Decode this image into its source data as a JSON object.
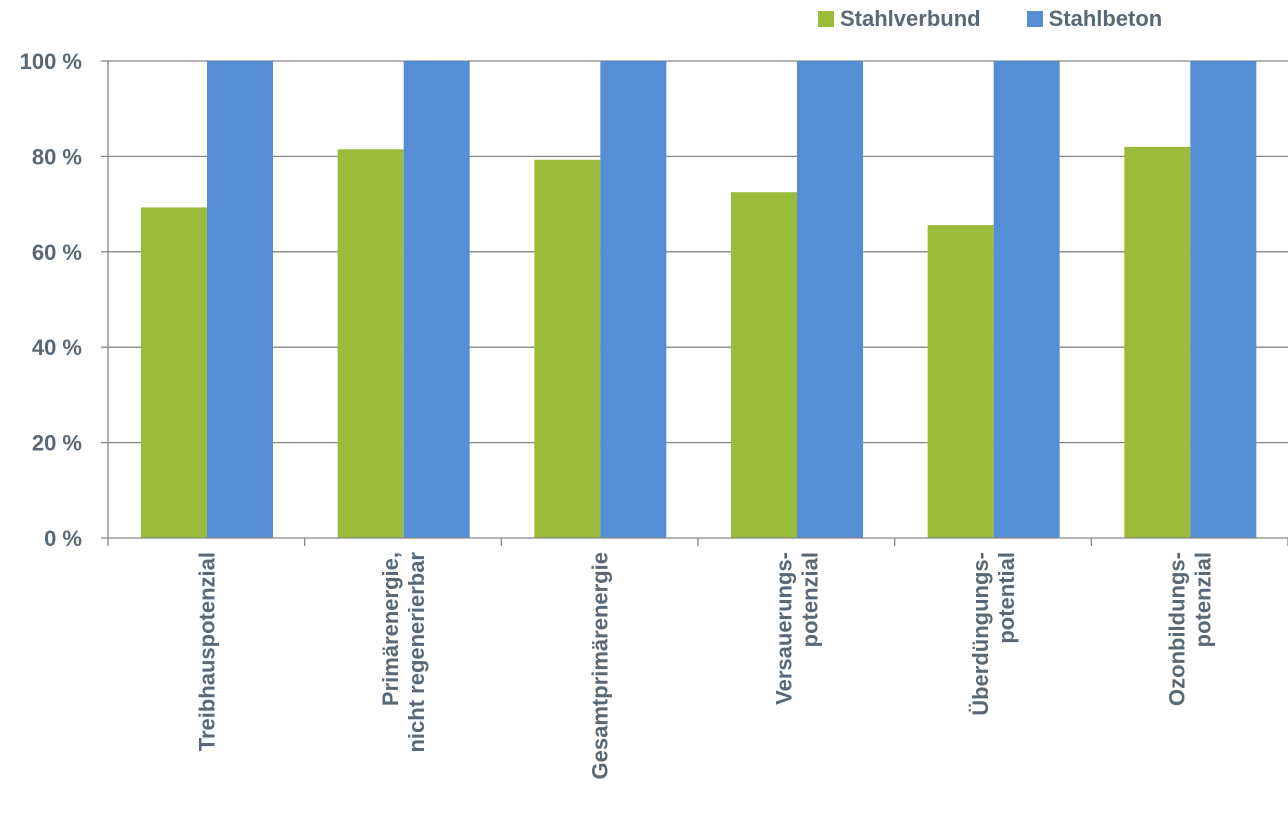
{
  "chart_data": {
    "type": "bar",
    "categories": [
      [
        "Treibhauspotenzial"
      ],
      [
        "Primärenergie,",
        "nicht regenerierbar"
      ],
      [
        "Gesamtprimärenergie"
      ],
      [
        "Versauerungs-",
        "potenzial"
      ],
      [
        "Überdüngungs-",
        "potential"
      ],
      [
        "Ozonbildungs-",
        "potenzial"
      ]
    ],
    "series": [
      {
        "name": "Stahlverbund",
        "color": "#9bbb3b",
        "values": [
          69.3,
          81.5,
          79.3,
          72.5,
          65.6,
          82.0
        ]
      },
      {
        "name": "Stahlbeton",
        "color": "#558ed5",
        "values": [
          100,
          100,
          100,
          100,
          100,
          100
        ]
      }
    ],
    "ylim": [
      0,
      100
    ],
    "yticks": [
      0,
      20,
      40,
      60,
      80,
      100
    ],
    "ytick_labels": [
      "0 %",
      "20 %",
      "40 %",
      "60 %",
      "80 %",
      "100 %"
    ],
    "grid": true,
    "legend_position": "top-right",
    "title": "",
    "xlabel": "",
    "ylabel": ""
  }
}
